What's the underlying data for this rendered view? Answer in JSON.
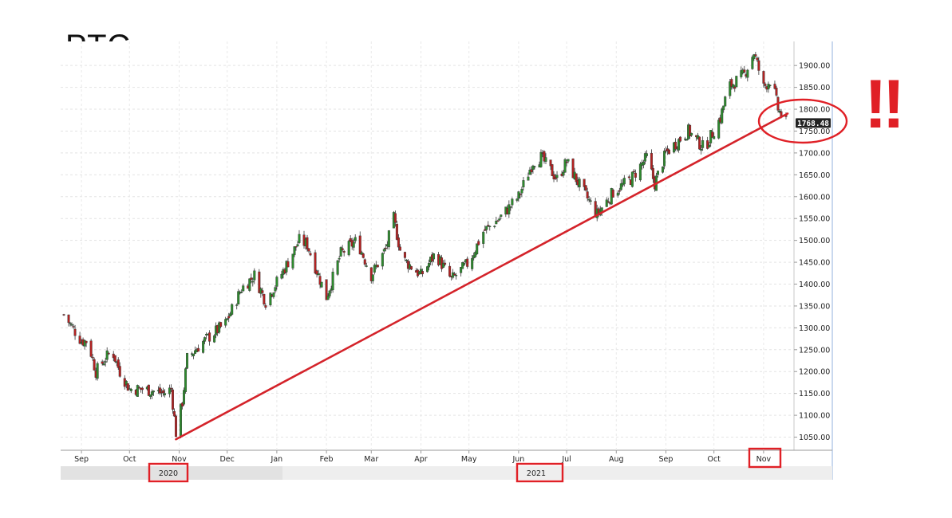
{
  "title": "PTC",
  "annotation_text": "!!",
  "colors": {
    "up": "#2e8b2e",
    "down": "#b22222",
    "trend": "#d4232a",
    "highlight": "#e02026"
  },
  "chart_data": {
    "type": "candlestick",
    "title": "PTC",
    "y_ticks": [
      1050,
      1100,
      1150,
      1200,
      1250,
      1300,
      1350,
      1400,
      1450,
      1500,
      1550,
      1600,
      1650,
      1700,
      1750,
      1800,
      1850,
      1900
    ],
    "y_tick_labels": [
      "1050.00",
      "1100.00",
      "1150.00",
      "1200.00",
      "1250.00",
      "1300.00",
      "1350.00",
      "1400.00",
      "1450.00",
      "1500.00",
      "1550.00",
      "1600.00",
      "1650.00",
      "1700.00",
      "1750.00",
      "1800.00",
      "1850.00",
      "1900.00"
    ],
    "ylim": [
      1020,
      1955
    ],
    "x_months": [
      "Sep",
      "Oct",
      "Nov",
      "Dec",
      "Jan",
      "Feb",
      "Mar",
      "Apr",
      "May",
      "Jun",
      "Jul",
      "Aug",
      "Sep",
      "Oct",
      "Nov"
    ],
    "x_years": [
      "2020",
      "2021"
    ],
    "last_price": "1768.48",
    "close_path": [
      [
        "2020-08-21",
        1330
      ],
      [
        "2020-09-01",
        1270
      ],
      [
        "2020-09-05",
        1270
      ],
      [
        "2020-09-10",
        1200
      ],
      [
        "2020-09-20",
        1250
      ],
      [
        "2020-09-25",
        1200
      ],
      [
        "2020-10-01",
        1160
      ],
      [
        "2020-10-10",
        1160
      ],
      [
        "2020-10-22",
        1150
      ],
      [
        "2020-10-27",
        1160
      ],
      [
        "2020-10-30",
        1060
      ],
      [
        "2020-11-03",
        1130
      ],
      [
        "2020-11-06",
        1230
      ],
      [
        "2020-11-15",
        1265
      ],
      [
        "2020-11-30",
        1310
      ],
      [
        "2020-12-10",
        1390
      ],
      [
        "2020-12-18",
        1420
      ],
      [
        "2020-12-25",
        1360
      ],
      [
        "2021-01-05",
        1430
      ],
      [
        "2021-01-15",
        1500
      ],
      [
        "2021-01-20",
        1490
      ],
      [
        "2021-02-01",
        1370
      ],
      [
        "2021-02-10",
        1470
      ],
      [
        "2021-02-20",
        1500
      ],
      [
        "2021-03-01",
        1420
      ],
      [
        "2021-03-10",
        1480
      ],
      [
        "2021-03-15",
        1550
      ],
      [
        "2021-03-20",
        1460
      ],
      [
        "2021-04-01",
        1420
      ],
      [
        "2021-04-10",
        1470
      ],
      [
        "2021-04-20",
        1410
      ],
      [
        "2021-05-01",
        1450
      ],
      [
        "2021-05-10",
        1520
      ],
      [
        "2021-05-20",
        1550
      ],
      [
        "2021-06-01",
        1600
      ],
      [
        "2021-06-10",
        1680
      ],
      [
        "2021-06-15",
        1690
      ],
      [
        "2021-06-25",
        1640
      ],
      [
        "2021-07-01",
        1680
      ],
      [
        "2021-07-10",
        1620
      ],
      [
        "2021-07-20",
        1560
      ],
      [
        "2021-07-30",
        1610
      ],
      [
        "2021-08-10",
        1640
      ],
      [
        "2021-08-20",
        1690
      ],
      [
        "2021-08-25",
        1630
      ],
      [
        "2021-09-01",
        1700
      ],
      [
        "2021-09-15",
        1750
      ],
      [
        "2021-09-25",
        1710
      ],
      [
        "2021-10-05",
        1780
      ],
      [
        "2021-10-10",
        1850
      ],
      [
        "2021-10-20",
        1880
      ],
      [
        "2021-10-26",
        1930
      ],
      [
        "2021-11-01",
        1850
      ],
      [
        "2021-11-06",
        1870
      ],
      [
        "2021-11-10",
        1800
      ],
      [
        "2021-11-15",
        1768
      ]
    ],
    "trendline": {
      "start": [
        "2020-10-30",
        1045
      ],
      "end": [
        "2021-11-16",
        1790
      ]
    },
    "grid": true,
    "y_axis_position": "right"
  },
  "annotations": {
    "year_boxes": [
      "2020",
      "2021"
    ],
    "month_box": "Nov",
    "ellipse_around": "last price"
  }
}
